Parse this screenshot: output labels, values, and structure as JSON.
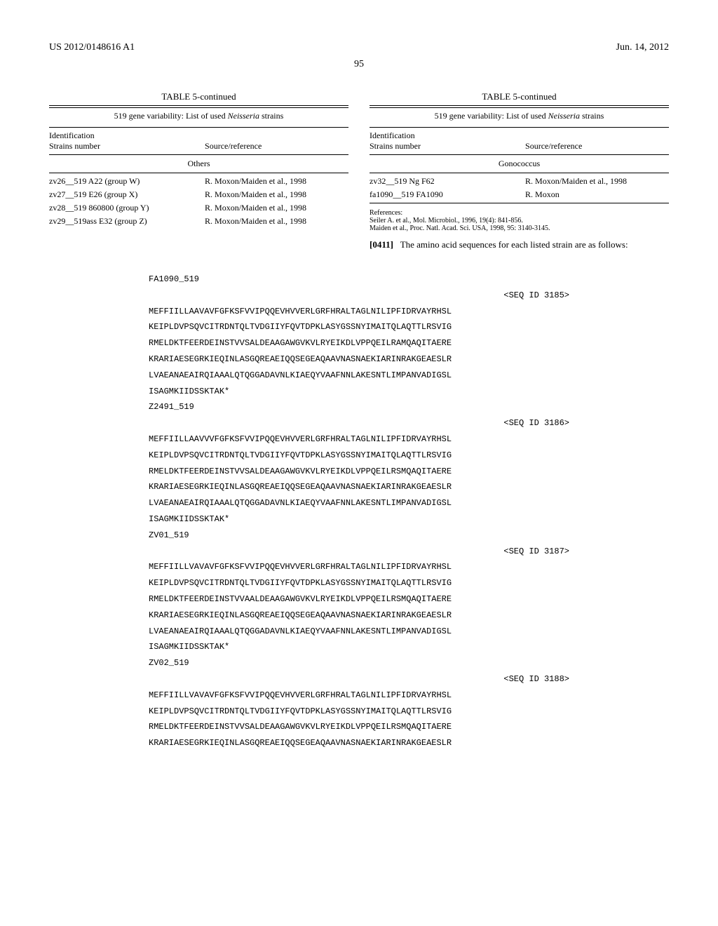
{
  "header": {
    "doc_number": "US 2012/0148616 A1",
    "date": "Jun. 14, 2012",
    "page": "95"
  },
  "left_table": {
    "title": "TABLE 5-continued",
    "subtitle_prefix": "519 gene variability: List of used ",
    "subtitle_italic": "Neisseria",
    "subtitle_suffix": " strains",
    "col1_a": "Identification",
    "col1_b": "Strains number",
    "col2": "Source/reference",
    "section": "Others",
    "rows": [
      {
        "s": "zv26__519 A22 (group W)",
        "r": "R. Moxon/Maiden et al., 1998"
      },
      {
        "s": "zv27__519 E26 (group X)",
        "r": "R. Moxon/Maiden et al., 1998"
      },
      {
        "s": "zv28__519 860800 (group Y)",
        "r": "R. Moxon/Maiden et al., 1998"
      },
      {
        "s": "zv29__519ass E32 (group Z)",
        "r": "R. Moxon/Maiden et al., 1998"
      }
    ]
  },
  "right_table": {
    "title": "TABLE 5-continued",
    "subtitle_prefix": "519 gene variability: List of used ",
    "subtitle_italic": "Neisseria",
    "subtitle_suffix": " strains",
    "col1_a": "Identification",
    "col1_b": "Strains number",
    "col2": "Source/reference",
    "section": "Gonococcus",
    "rows": [
      {
        "s": "zv32__519 Ng F62",
        "r": "R. Moxon/Maiden et al., 1998"
      },
      {
        "s": "fa1090__519 FA1090",
        "r": "R. Moxon"
      }
    ],
    "refs_label": "References:",
    "ref1": "Seiler A. et al., Mol. Microbiol., 1996, 19(4): 841-856.",
    "ref2": "Maiden et al., Proc. Natl. Acad. Sci. USA, 1998, 95: 3140-3145."
  },
  "paragraph": {
    "num": "[0411]",
    "text": "The amino acid sequences for each listed strain are as follows:"
  },
  "sequences": [
    {
      "name": "FA1090_519",
      "seq_id": "<SEQ ID 3185>",
      "lines": [
        "MEFFIILLAAVAVFGFKSFVVIPQQEVHVVERLGRFHRALTAGLNILIPFIDRVAYRHSL",
        "KEIPLDVPSQVCITRDNTQLTVDGIIYFQVTDPKLASYGSSNYIMAITQLAQTTLRSVIG",
        "RMELDKTFEERDEINSTVVSALDEAAGAWGVKVLRYEIKDLVPPQEILRAMQAQITAERE",
        "KRARIAESEGRKIEQINLASGQREAEIQQSEGEAQAAVNASNAEKIARINRAKGEAESLR",
        "LVAEANAEAIRQIAAALQTQGGADAVNLKIAEQYVAAFNNLAKESNTLIMPANVADIGSL",
        "ISAGMKIIDSSKTAK*"
      ]
    },
    {
      "name": "Z2491_519",
      "seq_id": "<SEQ ID 3186>",
      "lines": [
        "MEFFIILLAAVVVFGFKSFVVIPQQEVHVVERLGRFHRALTAGLNILIPFIDRVAYRHSL",
        "KEIPLDVPSQVCITRDNTQLTVDGIIYFQVTDPKLASYGSSNYIMAITQLAQTTLRSVIG",
        "RMELDKTFEERDEINSTVVSALDEAAGAWGVKVLRYEIKDLVPPQEILRSMQAQITAERE",
        "KRARIAESEGRKIEQINLASGQREAEIQQSEGEAQAAVNASNAEKIARINRAKGEAESLR",
        "LVAEANAEAIRQIAAALQTQGGADAVNLKIAEQYVAAFNNLAKESNTLIMPANVADIGSL",
        "ISAGMKIIDSSKTAK*"
      ]
    },
    {
      "name": "ZV01_519",
      "seq_id": "<SEQ ID 3187>",
      "lines": [
        "MEFFIILLVAVAVFGFKSFVVIPQQEVHVVERLGRFHRALTAGLNILIPFIDRVAYRHSL",
        "KEIPLDVPSQVCITRDNTQLTVDGIIYFQVTDPKLASYGSSNYIMAITQLAQTTLRSVIG",
        "RMELDKTFEERDEINSTVVAALDEAAGAWGVKVLRYEIKDLVPPQEILRSMQAQITAERE",
        "KRARIAESEGRKIEQINLASGQREAEIQQSEGEAQAAVNASNAEKIARINRAKGEAESLR",
        "LVAEANAEAIRQIAAALQTQGGADAVNLKIAEQYVAAFNNLAKESNTLIMPANVADIGSL",
        "ISAGMKIIDSSKTAK*"
      ]
    },
    {
      "name": "ZV02_519",
      "seq_id": "<SEQ ID 3188>",
      "lines": [
        "MEFFIILLVAVAVFGFKSFVVIPQQEVHVVERLGRFHRALTAGLNILIPFIDRVAYRHSL",
        "KEIPLDVPSQVCITRDNTQLTVDGIIYFQVTDPKLASYGSSNYIMAITQLAQTTLRSVIG",
        "RMELDKTFEERDEINSTVVSALDEAAGAWGVKVLRYEIKDLVPPQEILRSMQAQITAERE",
        "KRARIAESEGRKIEQINLASGQREAEIQQSEGEAQAAVNASNAEKIARINRAKGEAESLR"
      ]
    }
  ]
}
